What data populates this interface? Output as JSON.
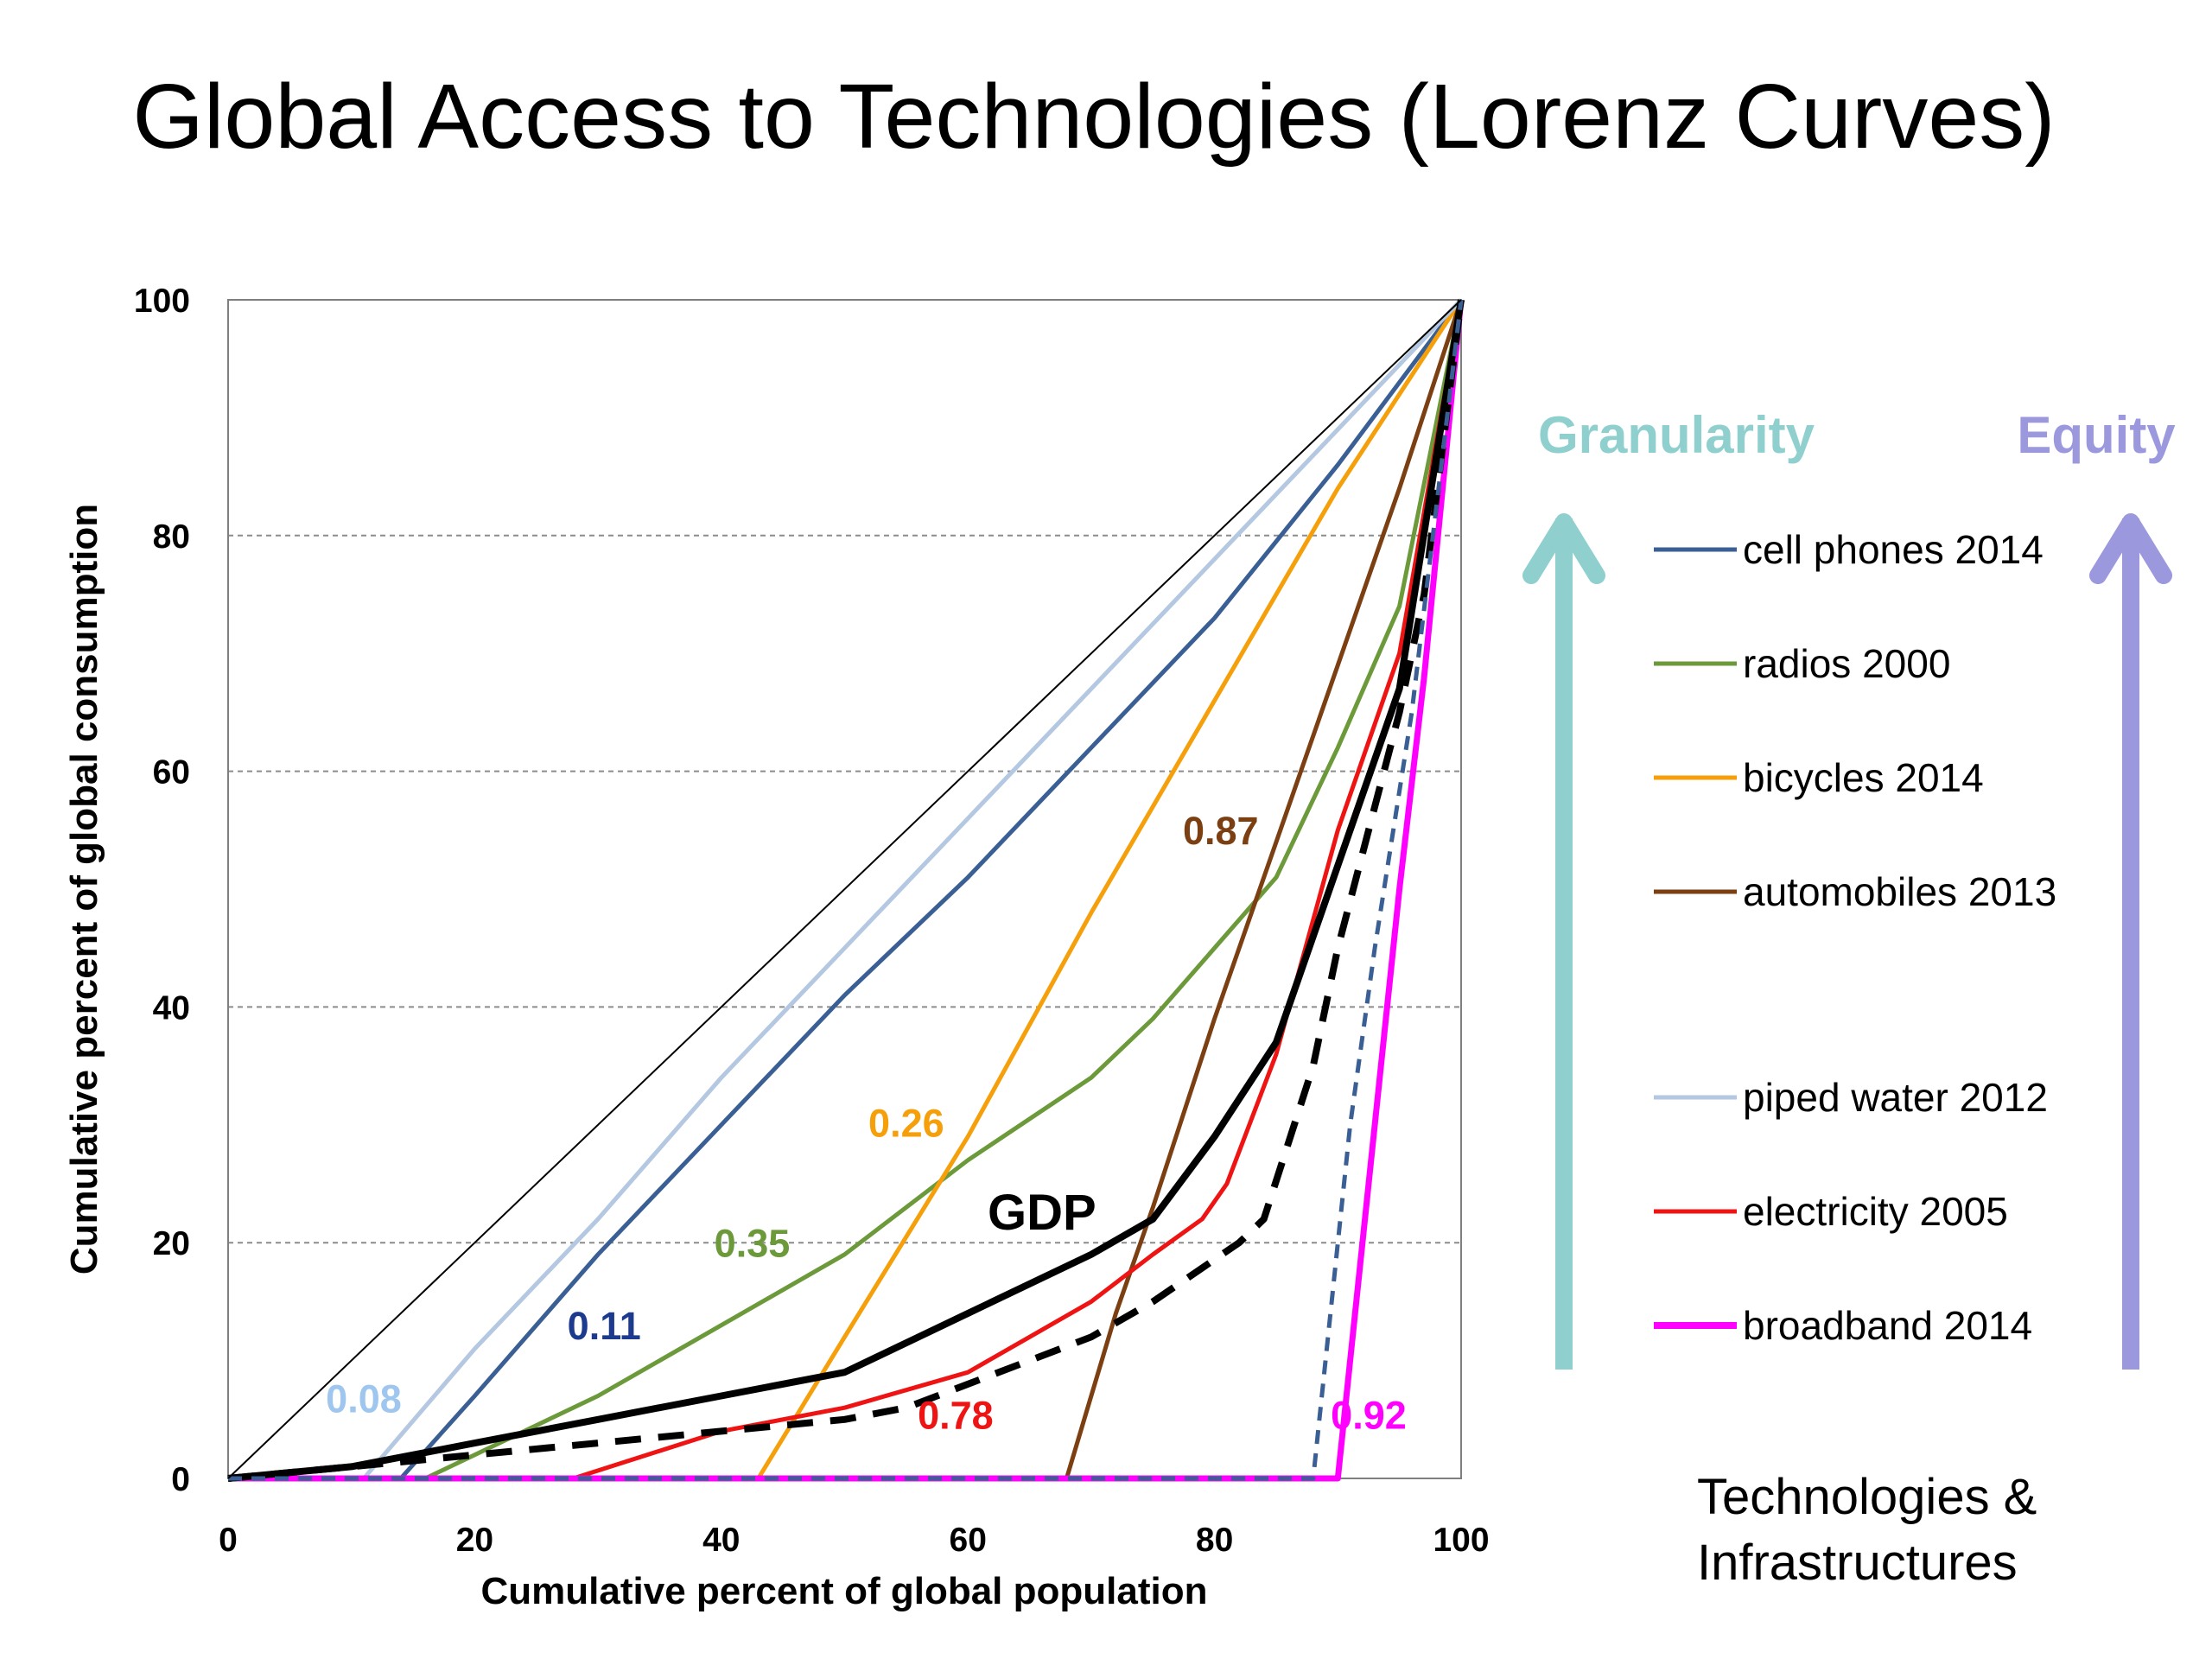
{
  "title": "Global Access to Technologies (Lorenz Curves)",
  "chart_data": {
    "type": "line",
    "xlabel": "Cumulative percent of global population",
    "ylabel": "Cumulative percent of global consumption",
    "xlim": [
      0,
      100
    ],
    "ylim": [
      0,
      100
    ],
    "xticks": [
      "0",
      "20",
      "40",
      "60",
      "80",
      "100"
    ],
    "yticks": [
      "0",
      "20",
      "40",
      "60",
      "80",
      "100"
    ],
    "grid": "horizontal dashed",
    "legend_position": "right",
    "series": [
      {
        "name": "cell phones 2014",
        "color": "#3a5f94",
        "style": "solid",
        "x": [
          0,
          14,
          20,
          30,
          40,
          50,
          60,
          70,
          80,
          90,
          100
        ],
        "y": [
          0,
          0,
          7,
          19,
          30,
          41,
          51,
          62,
          73,
          86,
          100
        ]
      },
      {
        "name": "radios 2000",
        "color": "#6c9a3a",
        "style": "solid",
        "x": [
          0,
          16,
          20,
          30,
          40,
          50,
          60,
          70,
          75,
          80,
          85,
          90,
          95,
          100
        ],
        "y": [
          0,
          0,
          2,
          7,
          13,
          19,
          27,
          34,
          39,
          45,
          51,
          62,
          74,
          100
        ]
      },
      {
        "name": "bicycles 2014",
        "color": "#f59f0a",
        "style": "solid",
        "x": [
          0,
          43,
          50,
          60,
          70,
          80,
          90,
          100
        ],
        "y": [
          0,
          0,
          12,
          29,
          48,
          66,
          84,
          100
        ]
      },
      {
        "name": "automobiles 2013",
        "color": "#7b3f12",
        "style": "solid",
        "x": [
          0,
          68,
          72,
          75,
          80,
          85,
          90,
          95,
          100
        ],
        "y": [
          0,
          0,
          14,
          23,
          39,
          54,
          69,
          84,
          100
        ]
      },
      {
        "name": "piped water 2012",
        "color": "#b4c8e2",
        "style": "solid",
        "x": [
          0,
          11,
          20,
          30,
          40,
          50,
          60,
          70,
          80,
          90,
          100
        ],
        "y": [
          0,
          0,
          11,
          22,
          34,
          45,
          56,
          67,
          78,
          89,
          100
        ]
      },
      {
        "name": "electricity 2005",
        "color": "#ee1414",
        "style": "solid",
        "x": [
          0,
          28,
          40,
          50,
          60,
          65,
          70,
          75,
          79,
          81,
          85,
          90,
          95,
          100
        ],
        "y": [
          0,
          0,
          4,
          6,
          9,
          12,
          15,
          19,
          22,
          25,
          36,
          55,
          70,
          100
        ]
      },
      {
        "name": "broadband 2014",
        "color": "#ff00ff",
        "style": "solid",
        "x": [
          0,
          90,
          95,
          97,
          100
        ],
        "y": [
          0,
          0,
          50,
          68,
          100
        ]
      },
      {
        "name": "",
        "color": "#000000",
        "style": "solid",
        "x": [
          0,
          10,
          20,
          30,
          40,
          50,
          60,
          70,
          75,
          80,
          85,
          90,
          95,
          100
        ],
        "y": [
          0,
          1,
          3,
          5,
          7,
          9,
          14,
          19,
          22,
          29,
          37,
          52,
          67,
          100
        ]
      },
      {
        "name": "",
        "color": "#000000",
        "style": "dashed",
        "x": [
          0,
          10,
          20,
          30,
          40,
          50,
          55,
          60,
          70,
          75,
          82,
          84,
          88,
          90,
          95,
          97,
          100
        ],
        "y": [
          0,
          1,
          2,
          3,
          4,
          5,
          6,
          8,
          12,
          15,
          20,
          22,
          35,
          45,
          65,
          75,
          100
        ]
      },
      {
        "name": "",
        "color": "#3a5f94",
        "style": "dashed",
        "x": [
          0,
          88,
          91,
          93,
          96,
          100
        ],
        "y": [
          0,
          0,
          30,
          45,
          65,
          100
        ]
      },
      {
        "name": "",
        "color": "#000000",
        "style": "thin",
        "x": [
          0,
          100
        ],
        "y": [
          0,
          100
        ]
      }
    ],
    "annotations": [
      {
        "text": "0.08",
        "x": 11,
        "y": 5.6,
        "color": "#9ec6ee"
      },
      {
        "text": "0.11",
        "x": 30.5,
        "y": 11.8,
        "color": "#1c3a8e"
      },
      {
        "text": "0.35",
        "x": 42.5,
        "y": 18.8,
        "color": "#6c9a3a"
      },
      {
        "text": "0.26",
        "x": 55,
        "y": 29,
        "color": "#f59f0a"
      },
      {
        "text": "0.87",
        "x": 80.5,
        "y": 53.8,
        "color": "#7b3f12"
      },
      {
        "text": "0.78",
        "x": 59,
        "y": 4.2,
        "color": "#ee1414"
      },
      {
        "text": "0.92",
        "x": 92.5,
        "y": 4.2,
        "color": "#ff00ff"
      },
      {
        "text": "GDP",
        "x": 66,
        "y": 21.1,
        "color": "#000000"
      }
    ]
  },
  "side": {
    "granularity_label": "Granularity",
    "granularity_color": "#8fd0cf",
    "equity_label": "Equity",
    "equity_color": "#9b98de",
    "footer_line1": "Technologies &",
    "footer_line2": "Infrastructures"
  }
}
